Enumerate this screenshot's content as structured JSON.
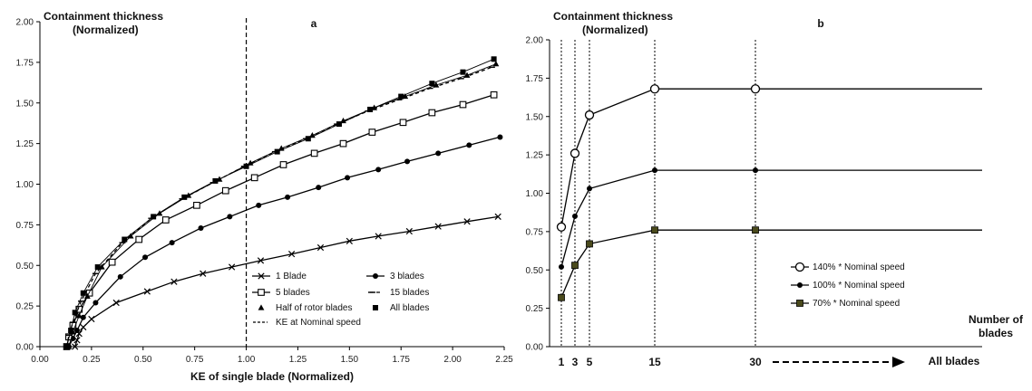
{
  "chart_data": [
    {
      "panel_label": "a",
      "type": "line",
      "ylabel_line1": "Containment thickness",
      "ylabel_line2": "(Normalized)",
      "xlabel": "KE of single blade (Normalized)",
      "xlim": [
        0,
        2.25
      ],
      "ylim": [
        0,
        2
      ],
      "xticks": [
        "0.00",
        "0.25",
        "0.50",
        "0.75",
        "1.00",
        "1.25",
        "1.50",
        "1.75",
        "2.00",
        "2.25"
      ],
      "yticks": [
        "0.00",
        "0.25",
        "0.50",
        "0.75",
        "1.00",
        "1.25",
        "1.50",
        "1.75",
        "2.00"
      ],
      "grid": false,
      "vline": {
        "x": 1.0,
        "style": "dashed"
      },
      "legend": [
        {
          "name": "1 Blade",
          "marker": "x"
        },
        {
          "name": "3 blades",
          "marker": "dot"
        },
        {
          "name": "5 blades",
          "marker": "square-open"
        },
        {
          "name": "15 blades",
          "marker": "dash"
        },
        {
          "name": "Half of rotor blades",
          "marker": "triangle"
        },
        {
          "name": "All blades",
          "marker": "square-filled"
        },
        {
          "name": "KE at Nominal speed",
          "marker": "dashed-line"
        }
      ],
      "series": [
        {
          "name": "1 Blade",
          "marker": "x",
          "x": [
            0.17,
            0.18,
            0.19,
            0.21,
            0.25,
            0.37,
            0.52,
            0.65,
            0.79,
            0.93,
            1.07,
            1.22,
            1.36,
            1.5,
            1.64,
            1.79,
            1.93,
            2.07,
            2.22
          ],
          "y": [
            0.0,
            0.04,
            0.08,
            0.12,
            0.17,
            0.27,
            0.34,
            0.4,
            0.45,
            0.49,
            0.53,
            0.57,
            0.61,
            0.65,
            0.68,
            0.71,
            0.74,
            0.77,
            0.8
          ]
        },
        {
          "name": "3 blades",
          "marker": "dot",
          "x": [
            0.14,
            0.16,
            0.18,
            0.21,
            0.27,
            0.39,
            0.51,
            0.64,
            0.78,
            0.92,
            1.06,
            1.2,
            1.35,
            1.49,
            1.64,
            1.78,
            1.93,
            2.08,
            2.23
          ],
          "y": [
            0.0,
            0.05,
            0.1,
            0.18,
            0.27,
            0.43,
            0.55,
            0.64,
            0.73,
            0.8,
            0.87,
            0.92,
            0.98,
            1.04,
            1.09,
            1.14,
            1.19,
            1.24,
            1.29
          ]
        },
        {
          "name": "5 blades",
          "marker": "square-open",
          "x": [
            0.13,
            0.14,
            0.16,
            0.19,
            0.24,
            0.35,
            0.48,
            0.61,
            0.76,
            0.9,
            1.04,
            1.18,
            1.33,
            1.47,
            1.61,
            1.76,
            1.9,
            2.05,
            2.2
          ],
          "y": [
            0.0,
            0.06,
            0.13,
            0.23,
            0.33,
            0.52,
            0.66,
            0.78,
            0.87,
            0.96,
            1.04,
            1.12,
            1.19,
            1.25,
            1.32,
            1.38,
            1.44,
            1.49,
            1.55
          ]
        },
        {
          "name": "15 blades",
          "marker": "dash",
          "x": [
            0.13,
            0.14,
            0.16,
            0.2,
            0.27,
            0.4,
            0.54,
            0.69,
            0.84,
            0.99,
            1.14,
            1.29,
            1.44,
            1.59,
            1.74,
            1.89,
            2.04,
            2.19
          ],
          "y": [
            0.0,
            0.07,
            0.15,
            0.28,
            0.45,
            0.64,
            0.79,
            0.91,
            1.01,
            1.11,
            1.2,
            1.28,
            1.37,
            1.45,
            1.52,
            1.59,
            1.65,
            1.72
          ]
        },
        {
          "name": "Half of rotor blades",
          "marker": "triangle",
          "x": [
            0.14,
            0.16,
            0.19,
            0.23,
            0.3,
            0.44,
            0.58,
            0.72,
            0.87,
            1.02,
            1.17,
            1.32,
            1.47,
            1.62,
            1.77,
            1.92,
            2.07,
            2.21
          ],
          "y": [
            0.0,
            0.09,
            0.19,
            0.31,
            0.49,
            0.68,
            0.82,
            0.93,
            1.03,
            1.13,
            1.22,
            1.3,
            1.39,
            1.47,
            1.54,
            1.61,
            1.67,
            1.74
          ]
        },
        {
          "name": "All blades",
          "marker": "square-filled",
          "x": [
            0.13,
            0.15,
            0.17,
            0.21,
            0.28,
            0.41,
            0.55,
            0.7,
            0.85,
            1.0,
            1.15,
            1.3,
            1.45,
            1.6,
            1.75,
            1.9,
            2.05,
            2.2
          ],
          "y": [
            0.0,
            0.1,
            0.21,
            0.33,
            0.49,
            0.66,
            0.8,
            0.92,
            1.02,
            1.11,
            1.2,
            1.28,
            1.37,
            1.46,
            1.54,
            1.62,
            1.69,
            1.77
          ]
        }
      ]
    },
    {
      "panel_label": "b",
      "type": "line",
      "ylabel_line1": "Containment thickness",
      "ylabel_line2": "(Normalized)",
      "xlabel_line1": "Number of",
      "xlabel_line2": "blades",
      "ylim": [
        0,
        2
      ],
      "yticks": [
        "0.00",
        "0.25",
        "0.50",
        "0.75",
        "1.00",
        "1.25",
        "1.50",
        "1.75",
        "2.00"
      ],
      "categories": [
        "1",
        "3",
        "5",
        "15",
        "30"
      ],
      "category_positions": [
        1,
        3,
        5,
        15,
        30
      ],
      "all_blades_label": "All blades",
      "grid": false,
      "vlines": [
        1,
        3,
        5,
        15,
        30
      ],
      "series": [
        {
          "name": "140% * Nominal speed",
          "marker": "circle-open",
          "values": [
            0.78,
            1.26,
            1.51,
            1.68,
            1.68
          ]
        },
        {
          "name": "100% * Nominal speed",
          "marker": "dot",
          "values": [
            0.52,
            0.85,
            1.03,
            1.15,
            1.15
          ]
        },
        {
          "name": "70% * Nominal speed",
          "marker": "square-filled",
          "values": [
            0.32,
            0.53,
            0.67,
            0.76,
            0.76
          ]
        }
      ]
    }
  ]
}
